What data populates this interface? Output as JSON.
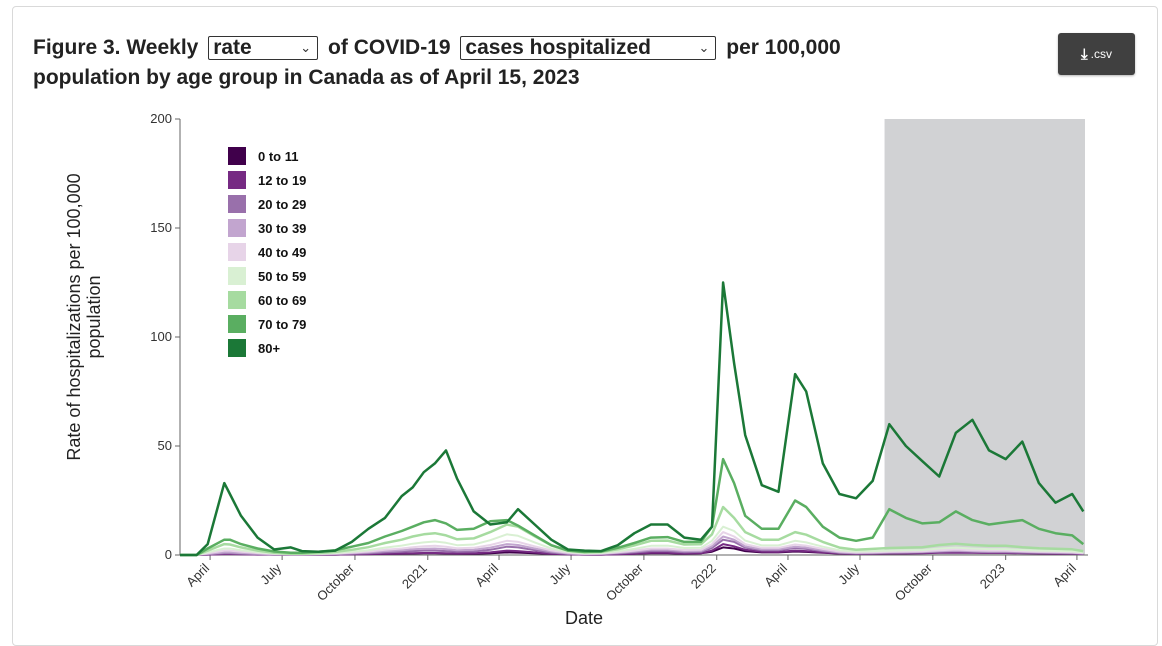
{
  "header": {
    "title_prefix": "Figure 3. Weekly",
    "rate_select": {
      "selected": "rate"
    },
    "title_middle": "of COVID-19",
    "measure_select": {
      "selected": "cases hospitalized"
    },
    "title_suffix": "per 100,000",
    "title_line2": "population by age group in Canada as of April 15, 2023",
    "download_label": ".csv",
    "download_icon": "download-icon"
  },
  "chart_data": {
    "type": "line",
    "xlabel": "Date",
    "ylabel": "Rate of hospitalizations per 100,000 population",
    "ylim": [
      0,
      200
    ],
    "y_ticks": [
      0,
      50,
      100,
      150,
      200
    ],
    "x_range": [
      "2020-02-23",
      "2023-04-15"
    ],
    "x_ticks": [
      {
        "date": "2020-04-01",
        "label": "April"
      },
      {
        "date": "2020-07-01",
        "label": "July"
      },
      {
        "date": "2020-10-01",
        "label": "October"
      },
      {
        "date": "2021-01-01",
        "label": "2021"
      },
      {
        "date": "2021-04-01",
        "label": "April"
      },
      {
        "date": "2021-07-01",
        "label": "July"
      },
      {
        "date": "2021-10-01",
        "label": "October"
      },
      {
        "date": "2022-01-01",
        "label": "2022"
      },
      {
        "date": "2022-04-01",
        "label": "April"
      },
      {
        "date": "2022-07-01",
        "label": "July"
      },
      {
        "date": "2022-10-01",
        "label": "October"
      },
      {
        "date": "2023-01-01",
        "label": "2023"
      },
      {
        "date": "2023-04-01",
        "label": "April"
      }
    ],
    "shaded_region": {
      "start": "2022-08-01",
      "end": "2023-04-15",
      "color": "#d1d2d4"
    },
    "legend_placement": "top-left",
    "grid": false,
    "x": [
      "2020-02-23",
      "2020-03-15",
      "2020-03-29",
      "2020-04-19",
      "2020-04-26",
      "2020-05-10",
      "2020-05-31",
      "2020-06-21",
      "2020-07-12",
      "2020-07-26",
      "2020-08-16",
      "2020-09-06",
      "2020-09-27",
      "2020-10-18",
      "2020-11-08",
      "2020-11-29",
      "2020-12-13",
      "2020-12-27",
      "2021-01-10",
      "2021-01-24",
      "2021-02-07",
      "2021-02-28",
      "2021-03-21",
      "2021-04-11",
      "2021-04-25",
      "2021-05-16",
      "2021-06-06",
      "2021-06-27",
      "2021-07-18",
      "2021-08-08",
      "2021-08-29",
      "2021-09-19",
      "2021-10-10",
      "2021-10-31",
      "2021-11-21",
      "2021-12-12",
      "2021-12-26",
      "2022-01-09",
      "2022-01-23",
      "2022-02-06",
      "2022-02-27",
      "2022-03-20",
      "2022-04-10",
      "2022-04-24",
      "2022-05-15",
      "2022-06-05",
      "2022-06-26",
      "2022-07-17",
      "2022-08-07",
      "2022-08-28",
      "2022-09-18",
      "2022-10-09",
      "2022-10-30",
      "2022-11-20",
      "2022-12-11",
      "2023-01-01",
      "2023-01-22",
      "2023-02-12",
      "2023-03-05",
      "2023-03-26",
      "2023-04-09"
    ],
    "series": [
      {
        "name": "0 to 11",
        "color": "#40004b",
        "values": [
          0,
          0,
          0.2,
          0.5,
          0.5,
          0.4,
          0.3,
          0.2,
          0.2,
          0.2,
          0.2,
          0.2,
          0.3,
          0.4,
          0.5,
          0.6,
          0.7,
          0.8,
          0.8,
          0.7,
          0.6,
          0.6,
          0.8,
          1.2,
          1.1,
          0.8,
          0.5,
          0.3,
          0.2,
          0.2,
          0.4,
          0.6,
          0.8,
          0.8,
          0.6,
          0.8,
          1.5,
          3.5,
          3,
          1.8,
          1.2,
          1.2,
          1.6,
          1.4,
          1,
          0.7,
          0.6,
          0.7,
          0.8,
          0.9,
          1,
          1.2,
          1.3,
          1.2,
          1.1,
          1.1,
          1,
          0.9,
          0.8,
          0.7,
          0.5
        ]
      },
      {
        "name": "12 to 19",
        "color": "#762a83",
        "values": [
          0,
          0,
          0.2,
          0.4,
          0.4,
          0.3,
          0.2,
          0.2,
          0.1,
          0.1,
          0.2,
          0.2,
          0.3,
          0.4,
          0.6,
          0.7,
          0.8,
          0.9,
          0.9,
          0.8,
          0.7,
          0.8,
          1.2,
          2,
          1.8,
          1.2,
          0.6,
          0.3,
          0.2,
          0.2,
          0.3,
          0.6,
          1,
          1,
          0.7,
          0.8,
          2,
          5,
          4,
          2.4,
          1.5,
          1.4,
          2,
          1.8,
          1.2,
          0.7,
          0.5,
          0.6,
          0.7,
          0.7,
          0.8,
          1,
          1.1,
          1,
          0.9,
          0.9,
          0.8,
          0.7,
          0.6,
          0.6,
          0.4
        ]
      },
      {
        "name": "20 to 29",
        "color": "#9970ab",
        "values": [
          0,
          0,
          0.3,
          0.8,
          0.8,
          0.6,
          0.4,
          0.2,
          0.2,
          0.2,
          0.3,
          0.4,
          0.6,
          0.8,
          1.2,
          1.5,
          1.8,
          2,
          2,
          1.8,
          1.5,
          1.6,
          2.4,
          3.8,
          3.5,
          2.2,
          1.1,
          0.5,
          0.3,
          0.4,
          0.7,
          1.2,
          1.8,
          1.8,
          1.3,
          1.4,
          3.2,
          7,
          6,
          3.4,
          2.2,
          2.2,
          3.2,
          2.8,
          1.8,
          1,
          0.7,
          0.8,
          1,
          1.1,
          1.2,
          1.5,
          1.7,
          1.5,
          1.3,
          1.3,
          1.1,
          1,
          0.9,
          0.8,
          0.6
        ]
      },
      {
        "name": "30 to 39",
        "color": "#c2a5cf",
        "values": [
          0,
          0,
          0.5,
          1.2,
          1.2,
          0.9,
          0.6,
          0.3,
          0.2,
          0.2,
          0.4,
          0.5,
          0.8,
          1.2,
          1.8,
          2.2,
          2.6,
          2.9,
          3,
          2.7,
          2.2,
          2.4,
          3.4,
          5,
          4.6,
          3,
          1.6,
          0.7,
          0.4,
          0.5,
          1,
          1.6,
          2.4,
          2.4,
          1.8,
          1.9,
          4,
          8.5,
          7,
          4,
          2.6,
          2.6,
          3.8,
          3.4,
          2.2,
          1.2,
          0.9,
          1,
          1.2,
          1.3,
          1.4,
          1.8,
          2,
          1.8,
          1.6,
          1.6,
          1.4,
          1.2,
          1.1,
          1,
          0.7
        ]
      },
      {
        "name": "40 to 49",
        "color": "#e7d4e8",
        "values": [
          0,
          0,
          0.8,
          2,
          2,
          1.5,
          0.9,
          0.5,
          0.3,
          0.3,
          0.5,
          0.7,
          1.1,
          1.6,
          2.4,
          3,
          3.6,
          4,
          4.2,
          3.8,
          3.1,
          3.3,
          4.6,
          6.5,
          6,
          4,
          2.1,
          1,
          0.6,
          0.7,
          1.3,
          2,
          3,
          3,
          2.3,
          2.4,
          5,
          10.5,
          8.5,
          5,
          3.3,
          3.3,
          4.8,
          4.3,
          2.8,
          1.6,
          1.2,
          1.3,
          1.5,
          1.6,
          1.7,
          2.2,
          2.5,
          2.2,
          2,
          2,
          1.7,
          1.5,
          1.4,
          1.2,
          0.9
        ]
      },
      {
        "name": "50 to 59",
        "color": "#d9f0d3",
        "values": [
          0,
          0,
          1.2,
          3,
          3,
          2.2,
          1.3,
          0.7,
          0.4,
          0.4,
          0.6,
          0.9,
          1.5,
          2.2,
          3.4,
          4.3,
          5.2,
          5.8,
          6.2,
          5.6,
          4.5,
          4.8,
          6.8,
          9.5,
          8.8,
          5.8,
          3,
          1.4,
          0.8,
          0.9,
          1.7,
          2.8,
          4.2,
          4.3,
          3.2,
          3.3,
          6.5,
          13,
          11,
          6.6,
          4.4,
          4.4,
          6.5,
          5.8,
          3.8,
          2.2,
          1.6,
          1.8,
          2,
          2.2,
          2.3,
          3,
          3.4,
          3,
          2.7,
          2.7,
          2.3,
          2,
          1.9,
          1.7,
          1.2
        ]
      },
      {
        "name": "60 to 69",
        "color": "#a6dba0",
        "values": [
          0,
          0,
          2,
          5,
          4.8,
          3.5,
          2,
          1,
          0.6,
          0.6,
          0.9,
          1.4,
          2.4,
          3.6,
          5.5,
          7,
          8.5,
          9.5,
          10,
          9,
          7.2,
          7.6,
          10.5,
          14,
          13,
          8.6,
          4.4,
          2,
          1.2,
          1.4,
          2.6,
          4.4,
          6.5,
          6.6,
          4.8,
          4.9,
          9.5,
          22,
          17,
          10.5,
          7,
          7,
          10.5,
          9.3,
          6,
          3.4,
          2.4,
          2.8,
          3.2,
          3.4,
          3.6,
          4.6,
          5.2,
          4.6,
          4.2,
          4.2,
          3.6,
          3.1,
          2.9,
          2.6,
          1.8
        ]
      },
      {
        "name": "70 to 79",
        "color": "#5aae61",
        "values": [
          0,
          0,
          3,
          7,
          7,
          5,
          3,
          1.6,
          1,
          1,
          1.5,
          2.2,
          3.8,
          5.5,
          8.5,
          11,
          13,
          15,
          16,
          14.5,
          11.5,
          12,
          15.5,
          16,
          13.5,
          9,
          4.5,
          2,
          1.4,
          1.6,
          3.3,
          5.5,
          8,
          8.2,
          6,
          6,
          13,
          44,
          33,
          18,
          12,
          12,
          25,
          22,
          13,
          8,
          6.5,
          8,
          21,
          17,
          14.5,
          15,
          20,
          16,
          14,
          15,
          16,
          12,
          10,
          9,
          5
        ]
      },
      {
        "name": "80+",
        "color": "#1b7837",
        "values": [
          0,
          0,
          5,
          33,
          28,
          18,
          8,
          2.5,
          3.5,
          1.8,
          1.5,
          2,
          6,
          12,
          17,
          27,
          31,
          38,
          42,
          48,
          35,
          20,
          14,
          15,
          21,
          14,
          7,
          2.5,
          2,
          1.8,
          4.5,
          10,
          14,
          14,
          8,
          7,
          13,
          125,
          88,
          55,
          32,
          29,
          83,
          75,
          42,
          28,
          26,
          34,
          60,
          50,
          43,
          36,
          56,
          62,
          48,
          44,
          52,
          33,
          24,
          28,
          20
        ]
      }
    ]
  }
}
